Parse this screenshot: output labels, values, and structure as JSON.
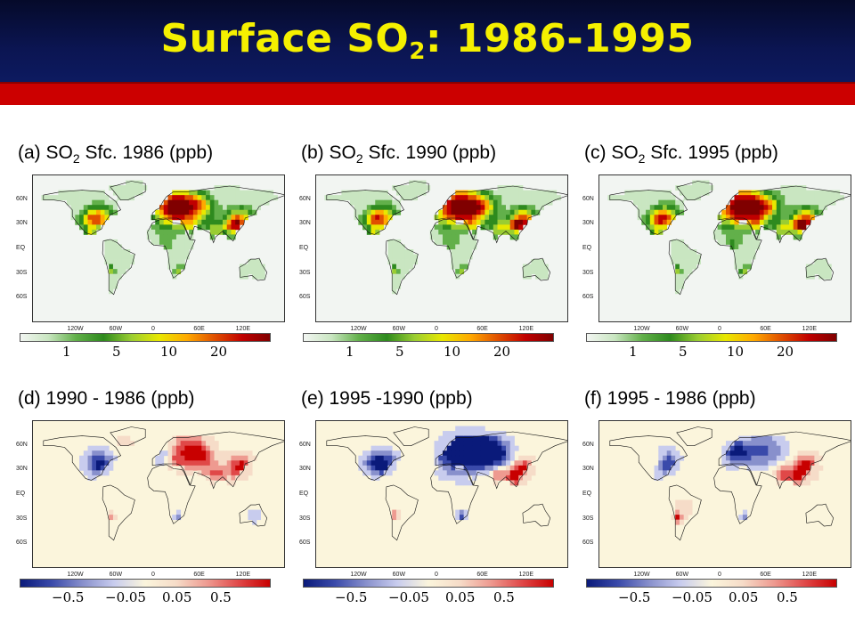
{
  "title": {
    "main": "Surface SO",
    "sub": "2",
    "rest": ": 1986-1995"
  },
  "panels": [
    {
      "label_pre": "(a) SO",
      "label_sub": "2",
      "label_post": " Sfc. 1986 (ppb)",
      "kind": "conc",
      "intensity": 1.0
    },
    {
      "label_pre": "(b) SO",
      "label_sub": "2",
      "label_post": " Sfc. 1990 (ppb)",
      "kind": "conc",
      "intensity": 1.05
    },
    {
      "label_pre": "(c) SO",
      "label_sub": "2",
      "label_post": " Sfc. 1995 (ppb)",
      "kind": "conc",
      "intensity": 1.1
    },
    {
      "label_pre": "(d) 1990 - 1986 (ppb)",
      "label_sub": "",
      "label_post": "",
      "kind": "diff",
      "variant": "d"
    },
    {
      "label_pre": "(e) 1995 -1990 (ppb)",
      "label_sub": "",
      "label_post": "",
      "kind": "diff",
      "variant": "e"
    },
    {
      "label_pre": "(f) 1995 - 1986 (ppb)",
      "label_sub": "",
      "label_post": "",
      "kind": "diff",
      "variant": "f"
    }
  ],
  "lat_ticks": [
    "60N",
    "30N",
    "EQ",
    "30S",
    "60S"
  ],
  "lon_ticks": [
    "120W",
    "60W",
    "0",
    "60E",
    "120E"
  ],
  "conc_colorbar_labels": [
    "1",
    "5",
    "10",
    "20"
  ],
  "diff_colorbar_labels": [
    "−0.5",
    "−0.05",
    "0.05",
    "0.5"
  ],
  "colors": {
    "title": "#f5f000",
    "header_bg": "#0b1552",
    "red_bar": "#cc0000",
    "conc_scale": [
      "#f2f5f2",
      "#c9e6c1",
      "#62b04a",
      "#2e8a1e",
      "#9acd32",
      "#e8e800",
      "#ffaa00",
      "#e05000",
      "#c00000",
      "#800000"
    ],
    "diff_scale": [
      "#0a1a7a",
      "#3a4aaa",
      "#8890cc",
      "#c8ccee",
      "#fbf5dc",
      "#f6dcc8",
      "#ee9a90",
      "#e04848",
      "#c80000"
    ]
  }
}
